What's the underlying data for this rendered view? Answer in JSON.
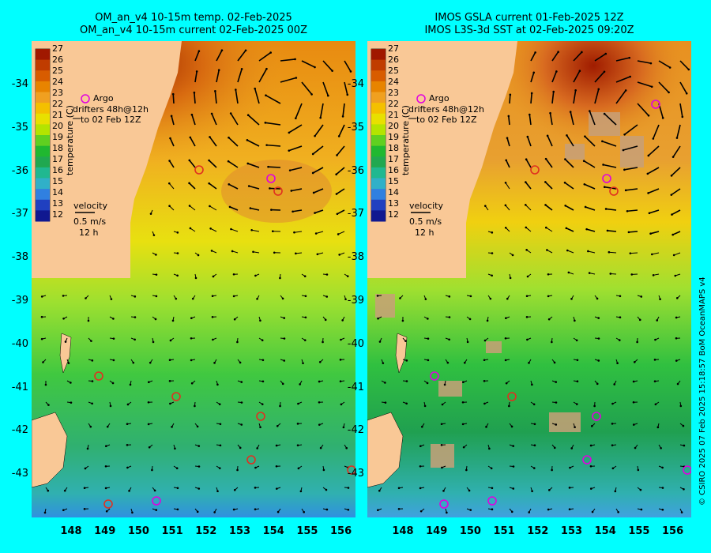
{
  "left_panel": {
    "title_line1": "OM_an_v4  10-15m temp. 02-Feb-2025",
    "title_line2": "OM_an_v4  10-15m current 02-Feb-2025 00Z"
  },
  "right_panel": {
    "title_line1": "IMOS GSLA current 01-Feb-2025 12Z",
    "title_line2": "IMOS L3S-3d SST at 02-Feb-2025 09:20Z"
  },
  "y_axis_labels": [
    "-34",
    "-35",
    "-36",
    "-37",
    "-38",
    "-39",
    "-40",
    "-41",
    "-42",
    "-43"
  ],
  "x_axis_labels": [
    "148",
    "149",
    "150",
    "151",
    "152",
    "153",
    "154",
    "155",
    "156"
  ],
  "colorbar": {
    "ticks": [
      "27",
      "26",
      "25",
      "24",
      "23",
      "22",
      "21",
      "20",
      "19",
      "18",
      "17",
      "16",
      "15",
      "14",
      "13",
      "12"
    ],
    "label": "temperature (C)",
    "colors": [
      "#a01800",
      "#c03c00",
      "#d85c00",
      "#e88400",
      "#f0a020",
      "#f4c000",
      "#e8e000",
      "#b4e400",
      "#60d020",
      "#20b830",
      "#20a850",
      "#20b890",
      "#30b0c8",
      "#3080e0",
      "#2040c0",
      "#101890"
    ]
  },
  "legend": {
    "argo": "Argo",
    "drifters_line1": "drifters 48h@12h",
    "drifters_line2": "to 02 Feb 12Z",
    "velocity_label": "velocity",
    "velocity_value": "0.5 m/s",
    "velocity_time": "12 h"
  },
  "credit": "© CSIRO 2025   07 Feb 2025 15:18:57 BoM OceanMAPS v4",
  "colors": {
    "background": "#00ffff",
    "land": "#f9c896",
    "argo": "#e000e0",
    "drifter": "#e03020"
  }
}
